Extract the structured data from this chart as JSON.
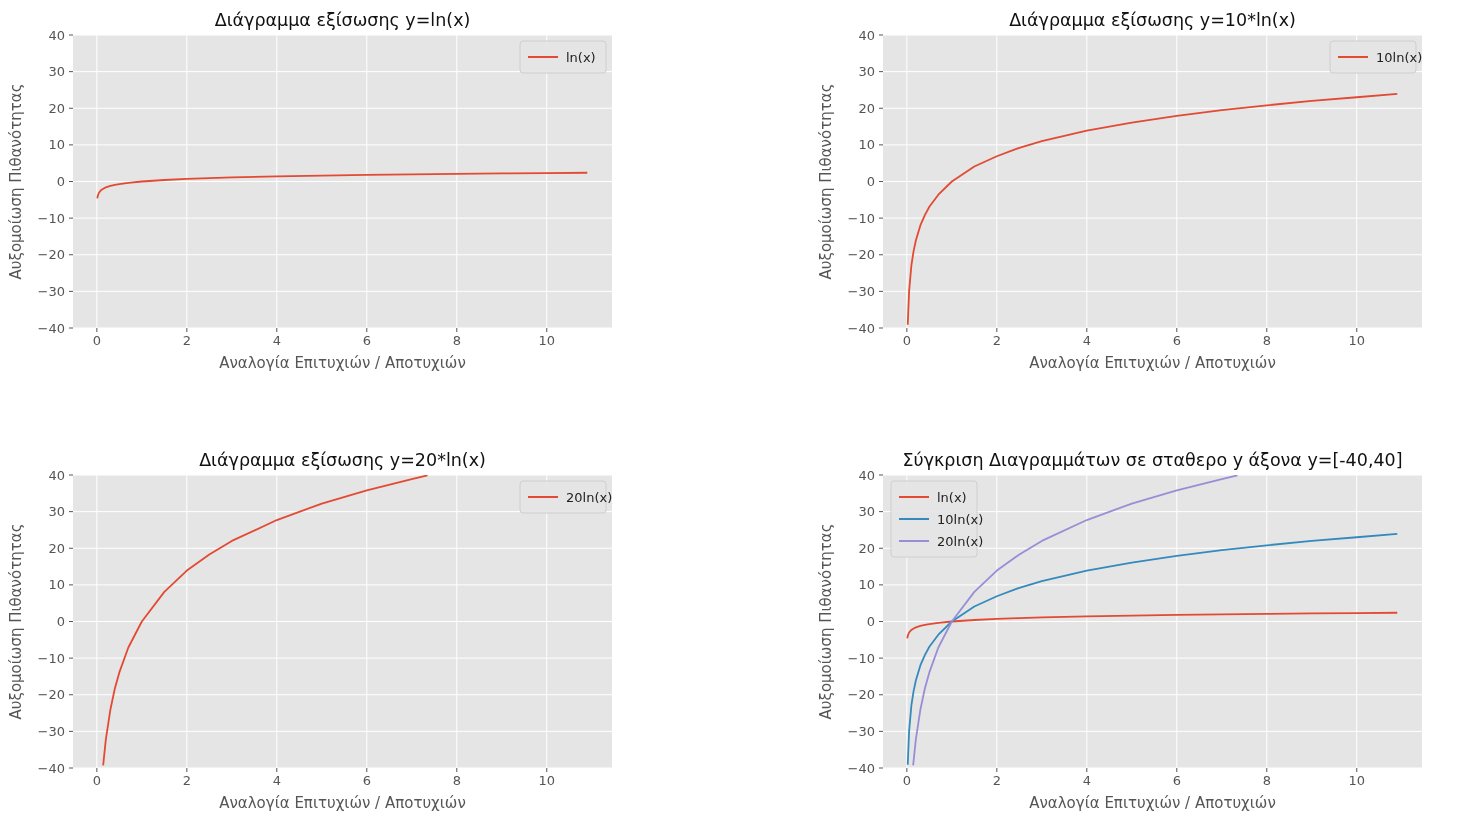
{
  "chart_data": [
    {
      "type": "line",
      "title": "Διάγραμμα εξίσωσης y=ln(x)",
      "xlabel": "Αναλογία Επιτυχιών / Αποτυχιών",
      "ylabel": "Αυξομοίωση Πιθανότητας",
      "xlim": [
        -0.53,
        11.45
      ],
      "ylim": [
        -40,
        40
      ],
      "xticks": [
        0,
        2,
        4,
        6,
        8,
        10
      ],
      "yticks": [
        {
          "value": -40,
          "label": "−40"
        },
        {
          "value": -30,
          "label": "−30"
        },
        {
          "value": -20,
          "label": "−20"
        },
        {
          "value": -10,
          "label": "−10"
        },
        0,
        10,
        20,
        30,
        40
      ],
      "grid": true,
      "legend": "top right",
      "series": [
        {
          "name": "ln(x)",
          "color": "#e24a33",
          "x": [
            0.01,
            0.02,
            0.05,
            0.1,
            0.15,
            0.2,
            0.3,
            0.4,
            0.5,
            0.7,
            1,
            1.5,
            2,
            2.5,
            3,
            4,
            5,
            6,
            7,
            8,
            9,
            10,
            10.9
          ],
          "values": [
            -4.61,
            -3.91,
            -3.0,
            -2.3,
            -1.9,
            -1.61,
            -1.2,
            -0.92,
            -0.69,
            -0.36,
            0,
            0.41,
            0.69,
            0.92,
            1.1,
            1.39,
            1.61,
            1.79,
            1.95,
            2.08,
            2.2,
            2.3,
            2.39
          ]
        }
      ]
    },
    {
      "type": "line",
      "title": "Διάγραμμα εξίσωσης y=10*ln(x)",
      "xlabel": "Αναλογία Επιτυχιών / Αποτυχιών",
      "ylabel": "Αυξομοίωση Πιθανότητας",
      "xlim": [
        -0.53,
        11.45
      ],
      "ylim": [
        -40,
        40
      ],
      "xticks": [
        0,
        2,
        4,
        6,
        8,
        10
      ],
      "yticks": [
        {
          "value": -40,
          "label": "−40"
        },
        {
          "value": -30,
          "label": "−30"
        },
        {
          "value": -20,
          "label": "−20"
        },
        {
          "value": -10,
          "label": "−10"
        },
        0,
        10,
        20,
        30,
        40
      ],
      "grid": true,
      "legend": "top right",
      "series": [
        {
          "name": "10ln(x)",
          "color": "#e24a33",
          "x": [
            0.02,
            0.05,
            0.1,
            0.15,
            0.2,
            0.3,
            0.4,
            0.5,
            0.7,
            1,
            1.5,
            2,
            2.5,
            3,
            4,
            5,
            6,
            7,
            8,
            9,
            10,
            10.9
          ],
          "values": [
            -39.1,
            -30.0,
            -23.0,
            -19.0,
            -16.1,
            -12.0,
            -9.2,
            -6.9,
            -3.6,
            0,
            4.1,
            6.9,
            9.2,
            11.0,
            13.9,
            16.1,
            17.9,
            19.5,
            20.8,
            22.0,
            23.0,
            23.9
          ]
        }
      ]
    },
    {
      "type": "line",
      "title": "Διάγραμμα εξίσωσης y=20*ln(x)",
      "xlabel": "Αναλογία Επιτυχιών / Αποτυχιών",
      "ylabel": "Αυξομοίωση Πιθανότητας",
      "xlim": [
        -0.53,
        11.45
      ],
      "ylim": [
        -40,
        40
      ],
      "xticks": [
        0,
        2,
        4,
        6,
        8,
        10
      ],
      "yticks": [
        {
          "value": -40,
          "label": "−40"
        },
        {
          "value": -30,
          "label": "−30"
        },
        {
          "value": -20,
          "label": "−20"
        },
        {
          "value": -10,
          "label": "−10"
        },
        0,
        10,
        20,
        30,
        40
      ],
      "grid": true,
      "legend": "top right",
      "series": [
        {
          "name": "20ln(x)",
          "color": "#e24a33",
          "x": [
            0.14,
            0.2,
            0.3,
            0.4,
            0.5,
            0.7,
            1,
            1.5,
            2,
            2.5,
            3,
            4,
            5,
            6,
            7,
            7.35
          ],
          "values": [
            -39.3,
            -32.2,
            -24.1,
            -18.3,
            -13.9,
            -7.1,
            0,
            8.1,
            13.9,
            18.3,
            22.0,
            27.7,
            32.2,
            35.8,
            38.9,
            39.9
          ]
        }
      ]
    },
    {
      "type": "line",
      "title": "Σύγκριση Διαγραμμάτων σε σταθερο y άξονα y=[-40,40]",
      "xlabel": "Αναλογία Επιτυχιών / Αποτυχιών",
      "ylabel": "Αυξομοίωση Πιθανότητας",
      "xlim": [
        -0.53,
        11.45
      ],
      "ylim": [
        -40,
        40
      ],
      "xticks": [
        0,
        2,
        4,
        6,
        8,
        10
      ],
      "yticks": [
        {
          "value": -40,
          "label": "−40"
        },
        {
          "value": -30,
          "label": "−30"
        },
        {
          "value": -20,
          "label": "−20"
        },
        {
          "value": -10,
          "label": "−10"
        },
        0,
        10,
        20,
        30,
        40
      ],
      "grid": true,
      "legend": "top left",
      "series": [
        {
          "name": "ln(x)",
          "color": "#e24a33",
          "x": [
            0.01,
            0.02,
            0.05,
            0.1,
            0.15,
            0.2,
            0.3,
            0.4,
            0.5,
            0.7,
            1,
            1.5,
            2,
            2.5,
            3,
            4,
            5,
            6,
            7,
            8,
            9,
            10,
            10.9
          ],
          "values": [
            -4.61,
            -3.91,
            -3.0,
            -2.3,
            -1.9,
            -1.61,
            -1.2,
            -0.92,
            -0.69,
            -0.36,
            0,
            0.41,
            0.69,
            0.92,
            1.1,
            1.39,
            1.61,
            1.79,
            1.95,
            2.08,
            2.2,
            2.3,
            2.39
          ]
        },
        {
          "name": "10ln(x)",
          "color": "#348abd",
          "x": [
            0.02,
            0.05,
            0.1,
            0.15,
            0.2,
            0.3,
            0.4,
            0.5,
            0.7,
            1,
            1.5,
            2,
            2.5,
            3,
            4,
            5,
            6,
            7,
            8,
            9,
            10,
            10.9
          ],
          "values": [
            -39.1,
            -30.0,
            -23.0,
            -19.0,
            -16.1,
            -12.0,
            -9.2,
            -6.9,
            -3.6,
            0,
            4.1,
            6.9,
            9.2,
            11.0,
            13.9,
            16.1,
            17.9,
            19.5,
            20.8,
            22.0,
            23.0,
            23.9
          ]
        },
        {
          "name": "20ln(x)",
          "color": "#988ed5",
          "x": [
            0.14,
            0.2,
            0.3,
            0.4,
            0.5,
            0.7,
            1,
            1.5,
            2,
            2.5,
            3,
            4,
            5,
            6,
            7,
            7.35
          ],
          "values": [
            -39.3,
            -32.2,
            -24.1,
            -18.3,
            -13.9,
            -7.1,
            0,
            8.1,
            13.9,
            18.3,
            22.0,
            27.7,
            32.2,
            35.8,
            38.9,
            39.9
          ]
        }
      ]
    }
  ]
}
